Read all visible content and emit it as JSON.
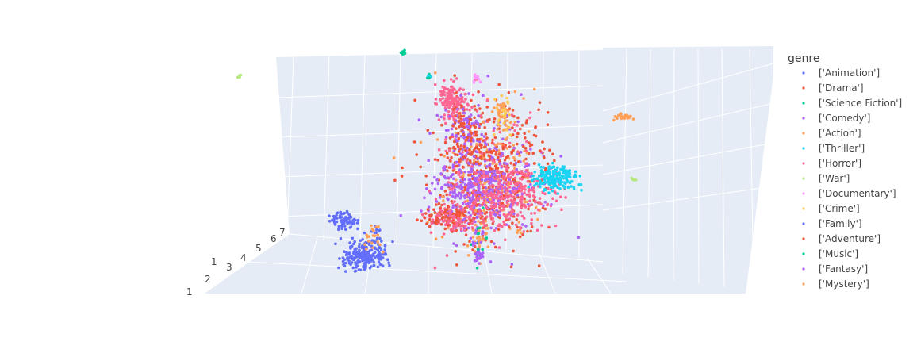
{
  "chart_data": {
    "type": "scatter",
    "subtype": "3d-scatter",
    "title": "",
    "legend": {
      "title": "genre",
      "placement": "right"
    },
    "series": [
      {
        "name": "['Animation']",
        "color": "#636efa"
      },
      {
        "name": "['Drama']",
        "color": "#EF553B"
      },
      {
        "name": "['Science Fiction']",
        "color": "#00cc96"
      },
      {
        "name": "['Comedy']",
        "color": "#ab63fa"
      },
      {
        "name": "['Action']",
        "color": "#FFA15A"
      },
      {
        "name": "['Thriller']",
        "color": "#19d3f3"
      },
      {
        "name": "['Horror']",
        "color": "#FF6692"
      },
      {
        "name": "['War']",
        "color": "#B6E880"
      },
      {
        "name": "['Documentary']",
        "color": "#FF97FF"
      },
      {
        "name": "['Crime']",
        "color": "#FECB52"
      },
      {
        "name": "['Family']",
        "color": "#636efa"
      },
      {
        "name": "['Adventure']",
        "color": "#EF553B"
      },
      {
        "name": "['Music']",
        "color": "#00cc96"
      },
      {
        "name": "['Fantasy']",
        "color": "#ab63fa"
      },
      {
        "name": "['Mystery']",
        "color": "#FFA15A"
      }
    ],
    "axis_tick_labels": [
      "1",
      "2",
      "3",
      "4",
      "5",
      "6",
      "7"
    ],
    "grid": true,
    "scene_background": "#e5ecf6"
  }
}
